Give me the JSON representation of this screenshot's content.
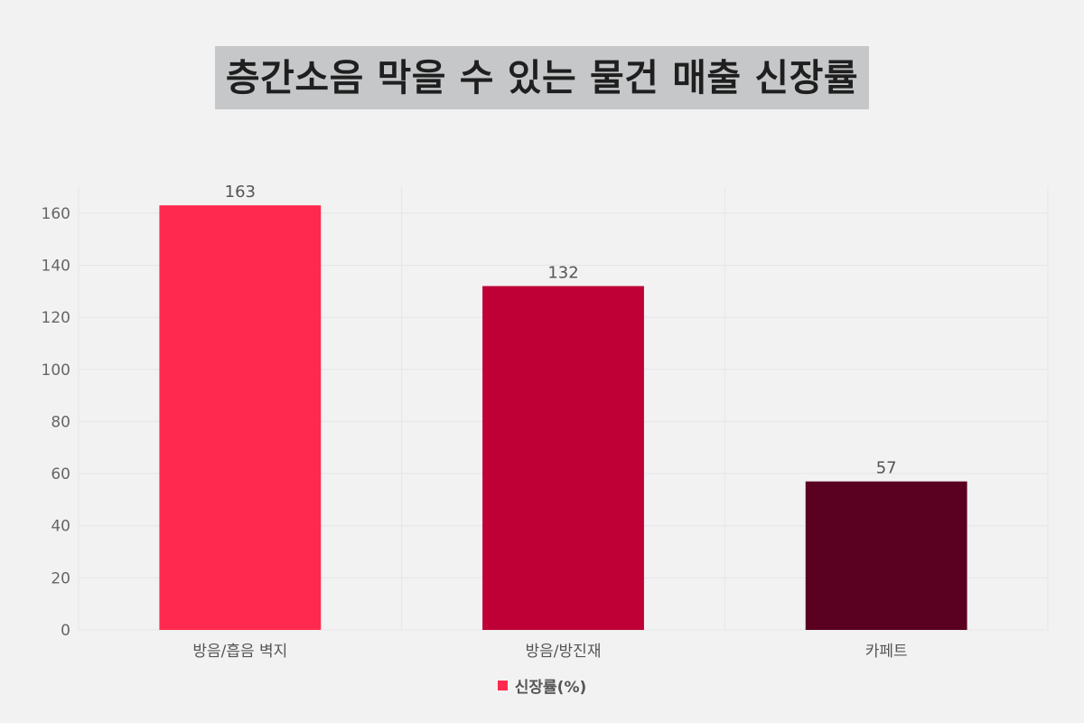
{
  "chart_data": {
    "type": "bar",
    "title": "층간소음 막을 수 있는 물건 매출 신장률",
    "categories": [
      "방음/흡음 벽지",
      "방음/방진재",
      "카페트"
    ],
    "series": [
      {
        "name": "신장률(%)",
        "values": [
          163,
          132,
          57
        ]
      }
    ],
    "bar_colors": [
      "#ff294f",
      "#bf0036",
      "#5a0021"
    ],
    "legend_color": "#ff294f",
    "ylim": [
      0,
      170
    ],
    "yticks": [
      0,
      20,
      40,
      60,
      80,
      100,
      120,
      140,
      160
    ],
    "grid": true,
    "legend_position": "bottom-center",
    "xlabel": "",
    "ylabel": ""
  }
}
